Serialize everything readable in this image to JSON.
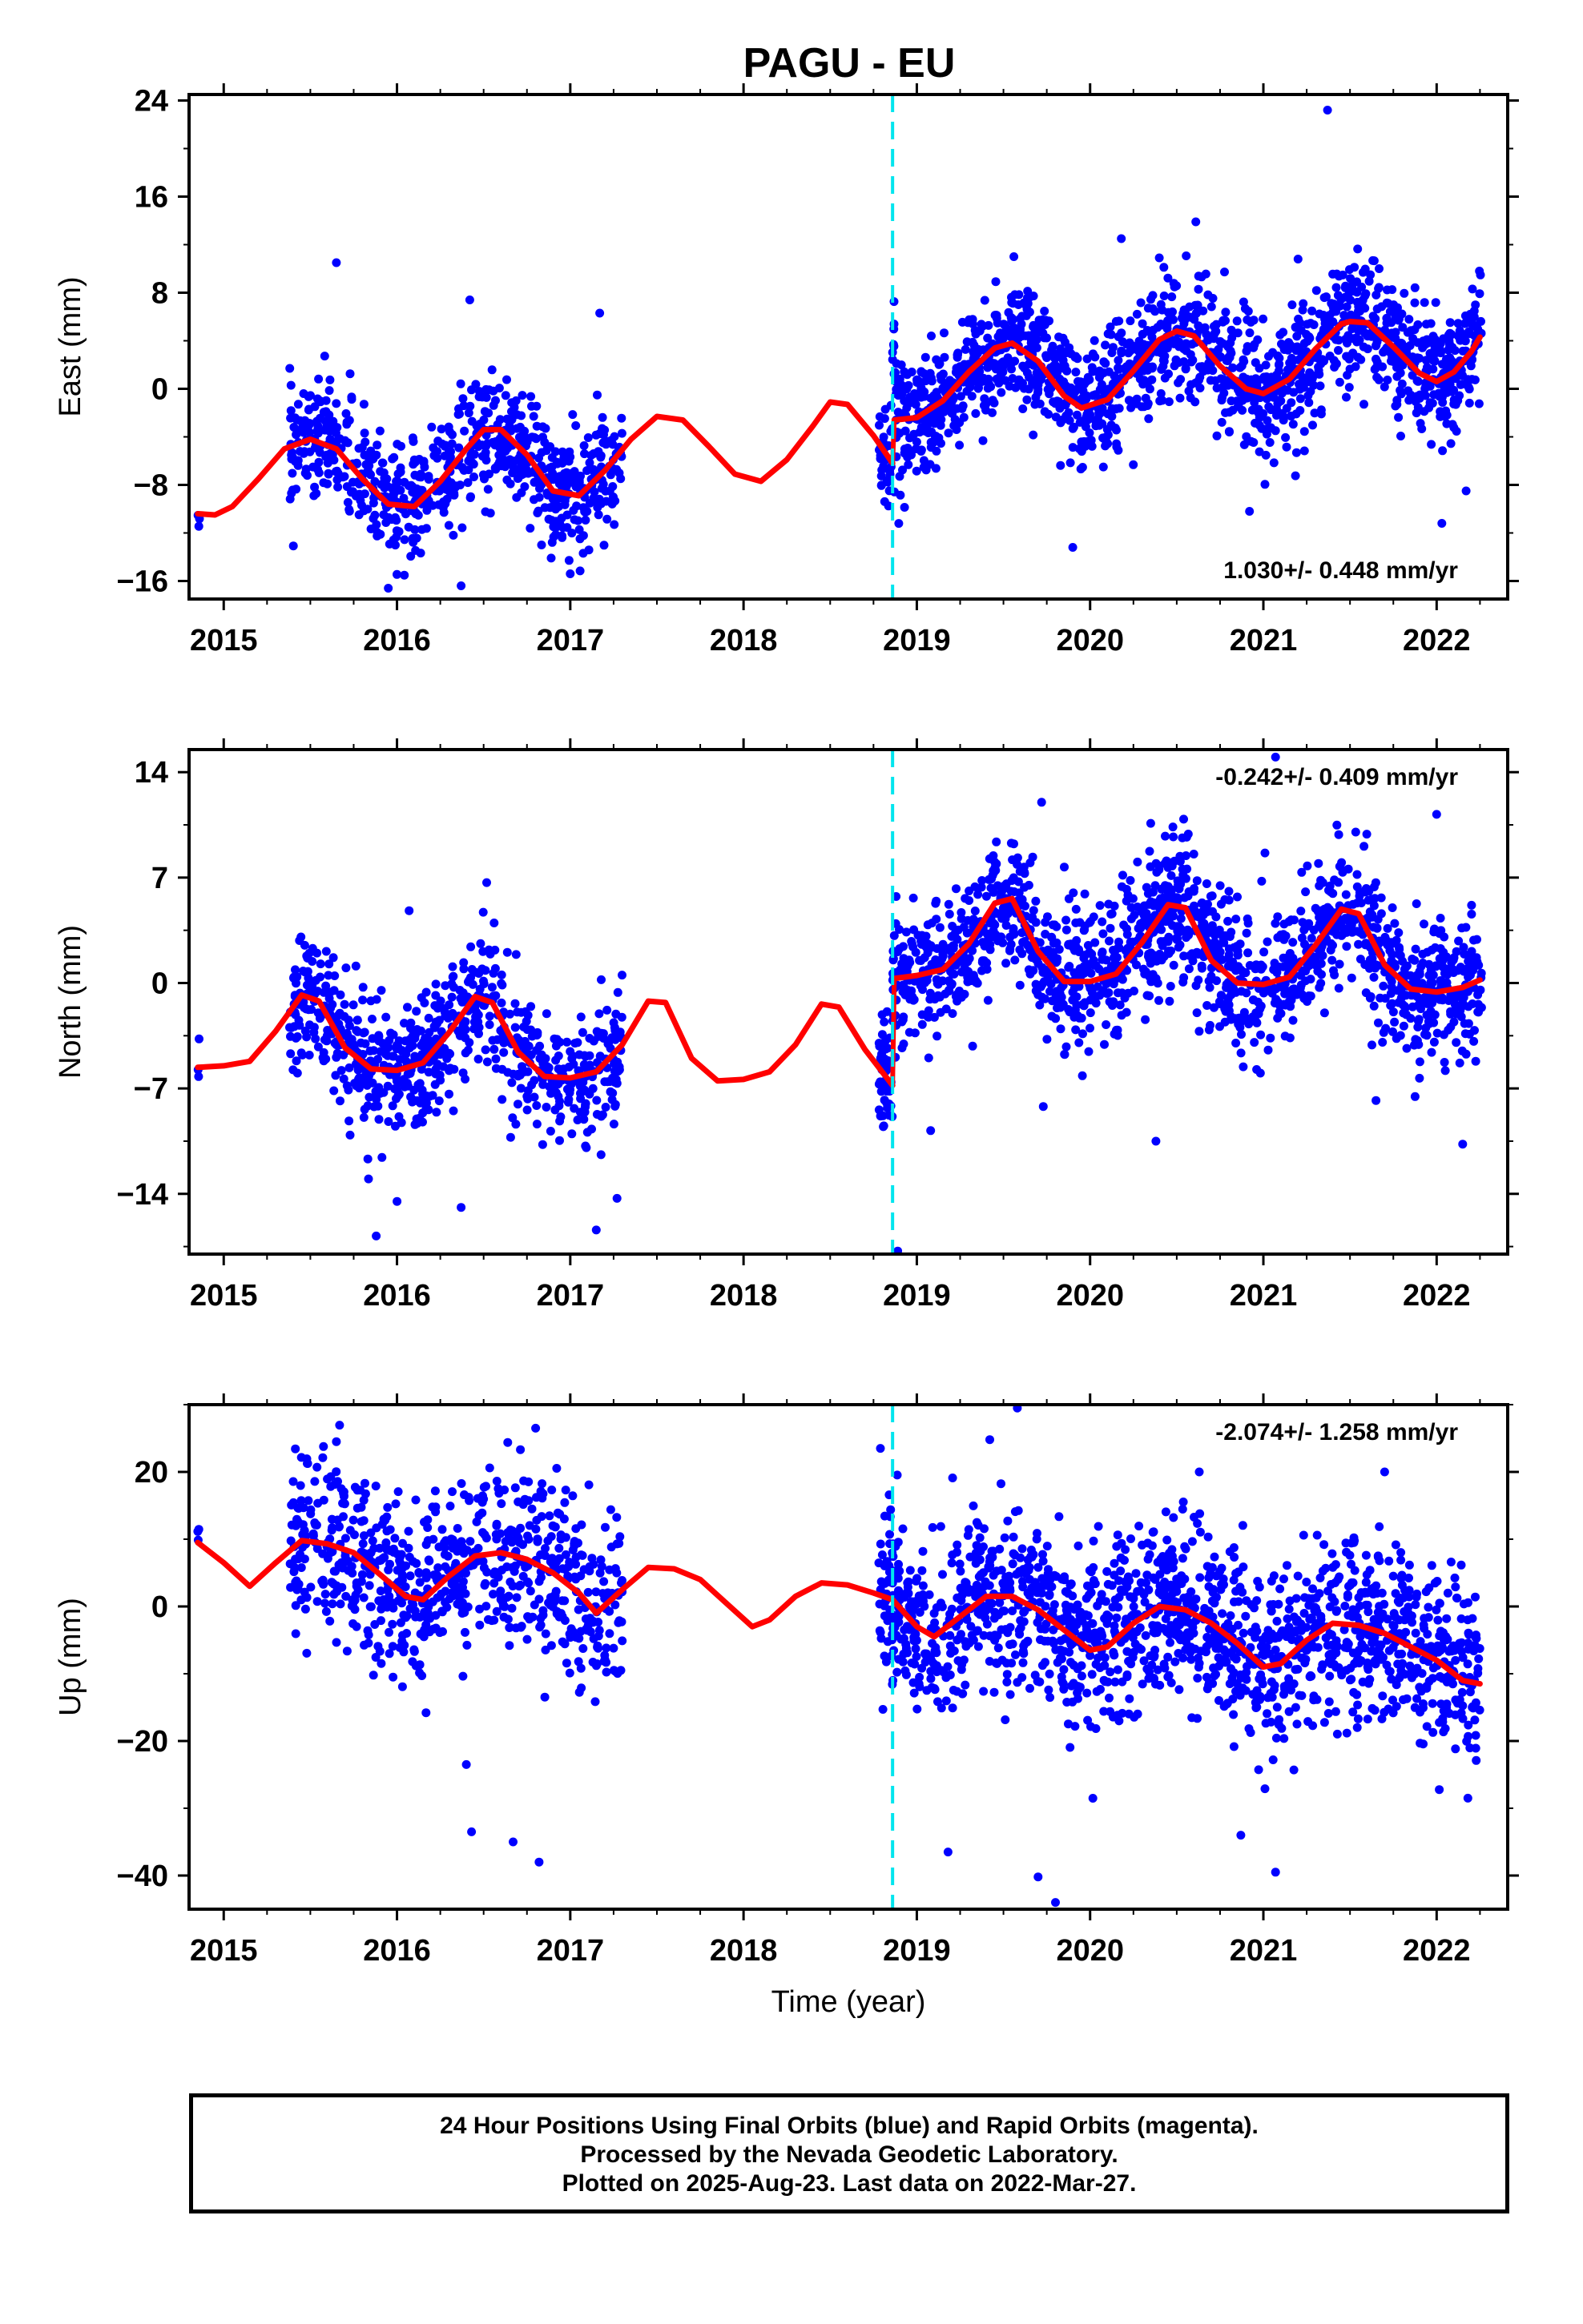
{
  "title": "PAGU - EU",
  "footer": {
    "line1": "24 Hour Positions Using Final Orbits (blue) and Rapid Orbits (magenta).",
    "line2": "Processed by the Nevada Geodetic Laboratory.",
    "line3": "Plotted on 2025-Aug-23. Last data on 2022-Mar-27."
  },
  "colors": {
    "points": "#0000ff",
    "model": "#ff0000",
    "offset_line": "#00e5ee",
    "frame": "#000000"
  },
  "chart_data": [
    {
      "type": "scatter",
      "title": "PAGU - EU",
      "component": "East",
      "ylabel": "East (mm)",
      "xlabel": "",
      "xlim": [
        2014.8,
        2022.41
      ],
      "ylim": [
        -17.5,
        24.5
      ],
      "yticks": [
        24,
        16,
        8,
        0,
        -8,
        -16
      ],
      "xticks": [
        2015,
        2016,
        2017,
        2018,
        2019,
        2020,
        2021,
        2022
      ],
      "xticklabels": [
        "2015",
        "2016",
        "2017",
        "2018",
        "2019",
        "2020",
        "2021",
        "2022"
      ],
      "rate_text": "1.030+/- 0.448 mm/yr",
      "rate_position": "bottom-right",
      "offset_epoch": 2018.86,
      "series": [
        {
          "kind": "model",
          "t": [
            2014.85,
            2014.95,
            2015.05,
            2015.2,
            2015.35,
            2015.5,
            2015.65,
            2015.8,
            2015.95,
            2016.1,
            2016.25,
            2016.4,
            2016.5,
            2016.6,
            2016.75,
            2016.9,
            2017.05,
            2017.2,
            2017.35,
            2017.5,
            2017.65,
            2017.8,
            2017.95,
            2018.1,
            2018.25,
            2018.4,
            2018.5,
            2018.6,
            2018.75,
            2018.86
          ],
          "v": [
            -10.4,
            -10.5,
            -9.8,
            -7.5,
            -5.0,
            -4.2,
            -5.0,
            -7.5,
            -9.6,
            -9.8,
            -7.7,
            -5.0,
            -3.4,
            -3.4,
            -5.5,
            -8.5,
            -8.9,
            -6.8,
            -4.2,
            -2.3,
            -2.6,
            -4.8,
            -7.1,
            -7.7,
            -5.9,
            -3.1,
            -1.1,
            -1.3,
            -3.9,
            -6.2
          ]
        },
        {
          "kind": "model",
          "t": [
            2018.87,
            2019.0,
            2019.15,
            2019.3,
            2019.45,
            2019.55,
            2019.7,
            2019.85,
            2019.95,
            2020.1,
            2020.25,
            2020.4,
            2020.5,
            2020.6,
            2020.75,
            2020.9,
            2021.0,
            2021.15,
            2021.3,
            2021.45,
            2021.5,
            2021.6,
            2021.75,
            2021.9,
            2022.0,
            2022.1,
            2022.2,
            2022.25
          ],
          "v": [
            -2.6,
            -2.4,
            -1.0,
            1.4,
            3.4,
            3.8,
            2.3,
            -0.6,
            -1.6,
            -0.9,
            1.5,
            4.1,
            4.8,
            4.4,
            1.9,
            0.0,
            -0.4,
            0.8,
            3.3,
            5.4,
            5.6,
            5.5,
            3.5,
            1.3,
            0.6,
            1.4,
            3.1,
            4.3
          ]
        },
        {
          "kind": "observations",
          "segments": [
            {
              "t0": 2014.85,
              "t1": 2014.86,
              "n": 3,
              "noise": 1.0
            },
            {
              "t0": 2015.38,
              "t1": 2017.3,
              "n": 720,
              "noise": 2.4
            },
            {
              "t0": 2018.78,
              "t1": 2022.26,
              "n": 1550,
              "noise": 2.6
            }
          ],
          "outliers": [
            [
              2015.65,
              10.5
            ],
            [
              2016.42,
              7.4
            ],
            [
              2017.17,
              6.3
            ],
            [
              2015.95,
              -16.6
            ],
            [
              2016.37,
              -16.4
            ],
            [
              2017.0,
              -15.4
            ],
            [
              2019.9,
              -13.2
            ],
            [
              2020.92,
              -10.2
            ],
            [
              2022.03,
              -11.2
            ],
            [
              2022.17,
              -8.5
            ],
            [
              2020.18,
              12.5
            ],
            [
              2020.61,
              13.9
            ],
            [
              2021.2,
              10.8
            ],
            [
              2021.37,
              23.2
            ],
            [
              2019.56,
              11.0
            ]
          ]
        }
      ]
    },
    {
      "type": "scatter",
      "component": "North",
      "ylabel": "North (mm)",
      "xlabel": "",
      "xlim": [
        2014.8,
        2022.41
      ],
      "ylim": [
        -18,
        15.5
      ],
      "yticks": [
        14,
        7,
        0,
        -7,
        -14
      ],
      "xticks": [
        2015,
        2016,
        2017,
        2018,
        2019,
        2020,
        2021,
        2022
      ],
      "xticklabels": [
        "2015",
        "2016",
        "2017",
        "2018",
        "2019",
        "2020",
        "2021",
        "2022"
      ],
      "rate_text": "-0.242+/- 0.409 mm/yr",
      "rate_position": "top-right",
      "offset_epoch": 2018.86,
      "series": [
        {
          "kind": "model",
          "t": [
            2014.85,
            2015.0,
            2015.15,
            2015.3,
            2015.45,
            2015.55,
            2015.7,
            2015.85,
            2016.0,
            2016.15,
            2016.3,
            2016.45,
            2016.55,
            2016.7,
            2016.85,
            2017.0,
            2017.15,
            2017.3,
            2017.45,
            2017.55,
            2017.7,
            2017.85,
            2018.0,
            2018.15,
            2018.3,
            2018.45,
            2018.55,
            2018.7,
            2018.86
          ],
          "v": [
            -5.6,
            -5.5,
            -5.2,
            -3.2,
            -0.8,
            -1.2,
            -4.3,
            -5.7,
            -5.8,
            -5.3,
            -3.3,
            -0.9,
            -1.3,
            -4.6,
            -6.2,
            -6.3,
            -5.9,
            -4.1,
            -1.2,
            -1.3,
            -5.0,
            -6.5,
            -6.4,
            -5.9,
            -4.1,
            -1.4,
            -1.6,
            -4.4,
            -6.8
          ]
        },
        {
          "kind": "model",
          "t": [
            2018.87,
            2019.0,
            2019.15,
            2019.3,
            2019.45,
            2019.55,
            2019.7,
            2019.85,
            2020.0,
            2020.15,
            2020.3,
            2020.45,
            2020.55,
            2020.7,
            2020.85,
            2021.0,
            2021.15,
            2021.3,
            2021.45,
            2021.55,
            2021.7,
            2021.85,
            2022.0,
            2022.15,
            2022.25
          ],
          "v": [
            0.3,
            0.5,
            0.9,
            2.6,
            5.3,
            5.6,
            2.1,
            0.1,
            0.1,
            0.6,
            2.7,
            5.2,
            5.0,
            1.5,
            0.0,
            -0.1,
            0.4,
            2.5,
            4.9,
            4.6,
            1.2,
            -0.4,
            -0.6,
            -0.3,
            0.2
          ]
        },
        {
          "kind": "observations",
          "segments": [
            {
              "t0": 2014.85,
              "t1": 2014.86,
              "n": 3,
              "noise": 1.5
            },
            {
              "t0": 2015.38,
              "t1": 2017.3,
              "n": 720,
              "noise": 2.2
            },
            {
              "t0": 2018.78,
              "t1": 2022.26,
              "n": 1550,
              "noise": 2.3
            }
          ],
          "outliers": [
            [
              2016.07,
              4.8
            ],
            [
              2015.88,
              -16.8
            ],
            [
              2017.15,
              -16.4
            ],
            [
              2016.0,
              -14.5
            ],
            [
              2016.37,
              -14.9
            ],
            [
              2017.27,
              -14.3
            ],
            [
              2018.89,
              -17.8
            ],
            [
              2019.08,
              -9.8
            ],
            [
              2019.72,
              12.0
            ],
            [
              2020.35,
              10.6
            ],
            [
              2020.38,
              -10.5
            ],
            [
              2019.73,
              -8.2
            ],
            [
              2022.0,
              11.2
            ],
            [
              2022.15,
              -10.7
            ],
            [
              2021.07,
              15.0
            ],
            [
              2021.65,
              -7.8
            ]
          ]
        }
      ]
    },
    {
      "type": "scatter",
      "component": "Up",
      "ylabel": "Up (mm)",
      "xlabel": "Time (year)",
      "xlim": [
        2014.8,
        2022.41
      ],
      "ylim": [
        -45,
        30
      ],
      "yticks": [
        20,
        0,
        -20,
        -40
      ],
      "xticks": [
        2015,
        2016,
        2017,
        2018,
        2019,
        2020,
        2021,
        2022
      ],
      "xticklabels": [
        "2015",
        "2016",
        "2017",
        "2018",
        "2019",
        "2020",
        "2021",
        "2022"
      ],
      "rate_text": "-2.074+/- 1.258 mm/yr",
      "rate_position": "top-right",
      "offset_epoch": 2018.86,
      "series": [
        {
          "kind": "model",
          "t": [
            2014.85,
            2015.0,
            2015.15,
            2015.3,
            2015.45,
            2015.6,
            2015.75,
            2015.9,
            2016.05,
            2016.15,
            2016.3,
            2016.45,
            2016.6,
            2016.75,
            2016.9,
            2017.05,
            2017.15,
            2017.3,
            2017.45,
            2017.6,
            2017.75,
            2017.9,
            2018.05,
            2018.15,
            2018.3,
            2018.45,
            2018.6,
            2018.75,
            2018.86,
            2019.0,
            2019.1,
            2019.25,
            2019.4,
            2019.55,
            2019.7,
            2019.85,
            2020.0,
            2020.1,
            2020.25,
            2020.4,
            2020.55,
            2020.7,
            2020.85,
            2021.0,
            2021.1,
            2021.25,
            2021.4,
            2021.55,
            2021.7,
            2021.85,
            2022.0,
            2022.15,
            2022.25
          ],
          "v": [
            9.5,
            6.5,
            3.0,
            6.5,
            9.8,
            9.3,
            8.0,
            4.8,
            1.5,
            1.0,
            4.5,
            7.5,
            8.0,
            7.0,
            5.0,
            2.0,
            -1.0,
            2.5,
            5.8,
            5.6,
            4.0,
            0.5,
            -3.0,
            -2.0,
            1.5,
            3.5,
            3.2,
            2.0,
            1.0,
            -3.0,
            -4.5,
            -1.5,
            1.5,
            1.5,
            -0.5,
            -3.5,
            -6.5,
            -6.0,
            -2.5,
            0.0,
            -0.5,
            -2.5,
            -5.5,
            -9.0,
            -8.5,
            -5.0,
            -2.5,
            -2.8,
            -4.0,
            -6.0,
            -8.0,
            -11.0,
            -11.5
          ]
        },
        {
          "kind": "observations",
          "segments": [
            {
              "t0": 2014.85,
              "t1": 2014.86,
              "n": 3,
              "noise": 4.0
            },
            {
              "t0": 2015.38,
              "t1": 2017.3,
              "n": 720,
              "noise": 6.5
            },
            {
              "t0": 2018.78,
              "t1": 2022.26,
              "n": 1550,
              "noise": 6.5
            }
          ],
          "outliers": [
            [
              2016.4,
              -23.5
            ],
            [
              2016.43,
              -33.5
            ],
            [
              2016.67,
              -35.0
            ],
            [
              2016.82,
              -38.0
            ],
            [
              2015.65,
              24.5
            ],
            [
              2016.8,
              26.5
            ],
            [
              2019.58,
              29.5
            ],
            [
              2019.8,
              -44.0
            ],
            [
              2019.7,
              -40.2
            ],
            [
              2018.79,
              23.5
            ],
            [
              2021.07,
              -39.5
            ],
            [
              2021.7,
              20.0
            ],
            [
              2020.63,
              20.0
            ],
            [
              2020.87,
              -34.0
            ],
            [
              2022.18,
              -28.5
            ],
            [
              2019.18,
              -36.5
            ]
          ]
        }
      ]
    }
  ]
}
